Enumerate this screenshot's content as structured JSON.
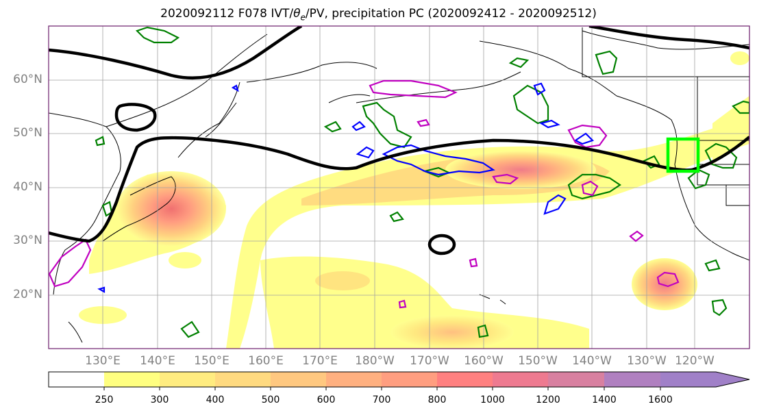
{
  "title": "2020092112 F078 IVT/θe/PV, precipitation PC (2020092412 - 2020092512)",
  "title_parts": {
    "prefix": "2020092112 F078 IVT/",
    "theta": "θ",
    "sub": "e",
    "suffix": "/PV, precipitation PC (2020092412 - 2020092512)"
  },
  "map": {
    "lat_labels": [
      "60°N",
      "50°N",
      "40°N",
      "30°N",
      "20°N"
    ],
    "lon_labels": [
      "130°E",
      "140°E",
      "150°E",
      "160°E",
      "170°E",
      "180°W",
      "170°W",
      "160°W",
      "150°W",
      "140°W",
      "130°W",
      "120°W"
    ],
    "region_box_color": "#00ff00",
    "contour_colors": {
      "pv": "#000000",
      "theta_e_green": "#008000",
      "blue": "#0000ff",
      "magenta": "#c000c0"
    }
  },
  "colorbar": {
    "ticks": [
      "250",
      "300",
      "400",
      "500",
      "600",
      "700",
      "800",
      "1000",
      "1200",
      "1400",
      "1600"
    ],
    "colors": [
      "#ffffff",
      "#ffff80",
      "#ffec80",
      "#ffda80",
      "#ffc880",
      "#ffb080",
      "#ff9e80",
      "#ff8080",
      "#ee7a90",
      "#d880a0",
      "#b080c0",
      "#a080c8"
    ],
    "extend": "max"
  }
}
